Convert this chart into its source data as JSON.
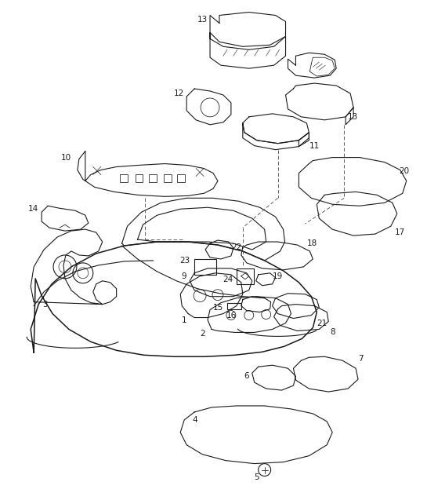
{
  "background_color": "#ffffff",
  "line_color": "#1a1a1a",
  "label_color": "#1a1a1a",
  "figure_width": 5.45,
  "figure_height": 6.28,
  "dpi": 100,
  "lw": 0.8
}
